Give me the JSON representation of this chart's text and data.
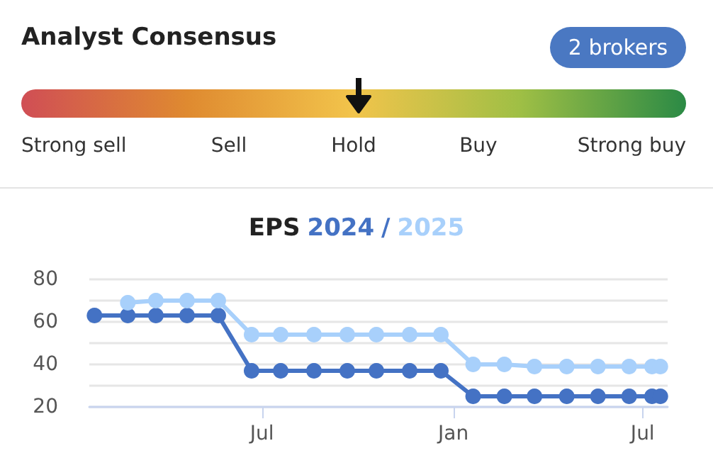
{
  "chart_data": [
    {
      "type": "other",
      "title": "Analyst Consensus",
      "annotations": [
        "2 brokers"
      ],
      "categories": [
        "Strong sell",
        "Sell",
        "Hold",
        "Buy",
        "Strong buy"
      ],
      "colors": [
        "#d04e55",
        "#df8a30",
        "#f2c44b",
        "#9fbf45",
        "#2b8a45"
      ]
    },
    {
      "type": "line",
      "title": "EPS",
      "annotations": [
        "/"
      ],
      "legend": "top",
      "grid": "y",
      "marker": "circle",
      "line_style": "solid",
      "xlim": [
        "2023-01-16",
        "2024-07-25"
      ],
      "xticks": [
        {
          "value": "2023-07-01",
          "label": "Jul"
        },
        {
          "value": "2024-01-01",
          "label": "Jan"
        },
        {
          "value": "2024-07-01",
          "label": "Jul"
        }
      ],
      "ylim": [
        20,
        80
      ],
      "yticks": [
        20,
        40,
        60,
        80
      ],
      "series": [
        {
          "name": "2024",
          "color": "#4472c4",
          "x": [
            "2023-01-21",
            "2023-02-22",
            "2023-03-21",
            "2023-04-20",
            "2023-05-20",
            "2023-06-21",
            "2023-07-19",
            "2023-08-20",
            "2023-09-21",
            "2023-10-19",
            "2023-11-20",
            "2023-12-20",
            "2024-01-20",
            "2024-02-19",
            "2024-03-19",
            "2024-04-19",
            "2024-05-19",
            "2024-06-18",
            "2024-07-10",
            "2024-07-18"
          ],
          "values": [
            63,
            63,
            63,
            63,
            63,
            37,
            37,
            37,
            37,
            37,
            37,
            37,
            25,
            25,
            25,
            25,
            25,
            25,
            25,
            25
          ]
        },
        {
          "name": "2025",
          "color": "#a8d0fb",
          "x": [
            "2023-02-22",
            "2023-03-21",
            "2023-04-20",
            "2023-05-20",
            "2023-06-21",
            "2023-07-19",
            "2023-08-20",
            "2023-09-21",
            "2023-10-19",
            "2023-11-20",
            "2023-12-20",
            "2024-01-20",
            "2024-02-19",
            "2024-03-19",
            "2024-04-19",
            "2024-05-19",
            "2024-06-18",
            "2024-07-10",
            "2024-07-18"
          ],
          "values": [
            69,
            70,
            70,
            70,
            54,
            54,
            54,
            54,
            54,
            54,
            54,
            40,
            40,
            39,
            39,
            39,
            39,
            39,
            39
          ]
        }
      ]
    }
  ]
}
